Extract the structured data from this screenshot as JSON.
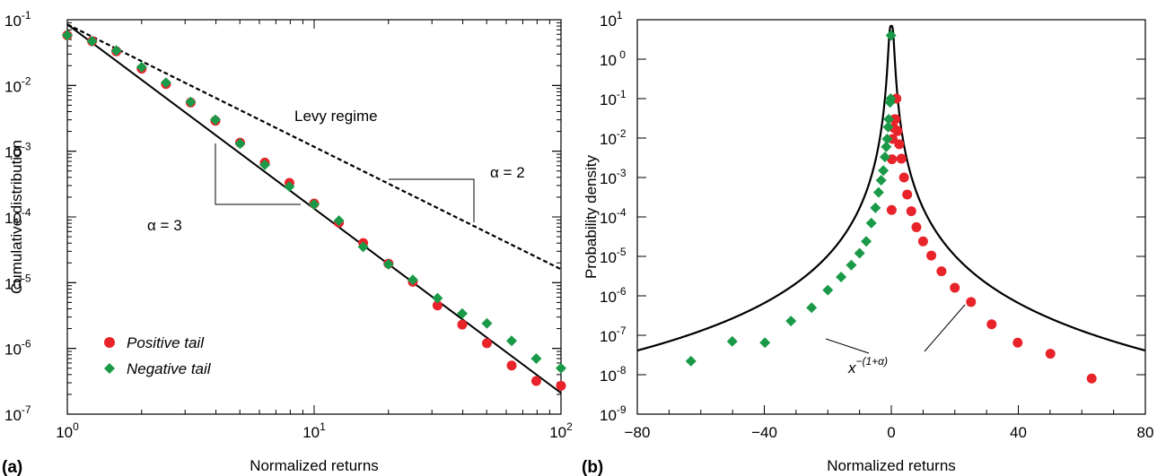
{
  "chart_data": [
    {
      "panel": "(a)",
      "type": "scatter",
      "xscale": "log",
      "yscale": "log",
      "xlabel": "Normalized returns",
      "ylabel": "Cumulative distribution",
      "xlim": [
        1,
        100
      ],
      "ylim": [
        1e-07,
        0.1
      ],
      "x_ticks": [
        {
          "base": "10",
          "exp": "0"
        },
        {
          "base": "10",
          "exp": "1"
        },
        {
          "base": "10",
          "exp": "2"
        }
      ],
      "y_ticks": [
        {
          "base": "10",
          "exp": "-1"
        },
        {
          "base": "10",
          "exp": "-2"
        },
        {
          "base": "10",
          "exp": "-3"
        },
        {
          "base": "10",
          "exp": "-4"
        },
        {
          "base": "10",
          "exp": "-5"
        },
        {
          "base": "10",
          "exp": "-6"
        },
        {
          "base": "10",
          "exp": "-7"
        }
      ],
      "legend": {
        "placement": "lower-left"
      },
      "series": [
        {
          "name": "Positive tail",
          "marker": "circle",
          "color": "#e8232a",
          "x": [
            1,
            1.26,
            1.58,
            2,
            2.51,
            3.16,
            3.98,
            5.01,
            6.31,
            7.94,
            10,
            12.6,
            15.8,
            20,
            25.1,
            31.6,
            39.8,
            50.1,
            63.1,
            79.4,
            100
          ],
          "y": [
            0.058,
            0.047,
            0.033,
            0.018,
            0.0105,
            0.0055,
            0.0029,
            0.00135,
            0.00067,
            0.00033,
            0.00016,
            8.2e-05,
            4e-05,
            1.95e-05,
            1.03e-05,
            4.5e-06,
            2.3e-06,
            1.2e-06,
            5.5e-07,
            3.2e-07,
            2.7e-07
          ]
        },
        {
          "name": "Negative tail",
          "marker": "diamond",
          "color": "#1a9a48",
          "x": [
            1,
            1.26,
            1.58,
            2,
            2.51,
            3.16,
            3.98,
            5.01,
            6.31,
            7.94,
            10,
            12.6,
            15.8,
            20,
            25.1,
            31.6,
            39.8,
            50.1,
            63.1,
            79.4,
            100
          ],
          "y": [
            0.058,
            0.047,
            0.034,
            0.019,
            0.011,
            0.0056,
            0.003,
            0.0013,
            0.00062,
            0.00029,
            0.000155,
            8.8e-05,
            3.5e-05,
            1.9e-05,
            1.1e-05,
            5.8e-06,
            3.4e-06,
            2.4e-06,
            1.3e-06,
            7e-07,
            5e-07
          ]
        }
      ],
      "lines": [
        {
          "style": "solid",
          "x": [
            1,
            100
          ],
          "y": [
            0.085,
            2.1e-07
          ]
        },
        {
          "style": "dashed",
          "x": [
            1,
            100
          ],
          "y": [
            0.085,
            1.6e-05
          ]
        }
      ],
      "annotations": {
        "levy": "Levy regime",
        "alpha_solid": "α = 3",
        "alpha_dashed": "α = 2"
      }
    },
    {
      "panel": "(b)",
      "type": "scatter",
      "xscale": "linear",
      "yscale": "log",
      "xlabel": "Normalized returns",
      "ylabel": "Probability density",
      "xlim": [
        -80,
        80
      ],
      "ylim": [
        1e-09,
        10
      ],
      "x_ticks": [
        "−80",
        "−40",
        "0",
        "40",
        "80"
      ],
      "y_ticks": [
        {
          "base": "10",
          "exp": "1"
        },
        {
          "base": "10",
          "exp": " 0"
        },
        {
          "base": "10",
          "exp": "-1"
        },
        {
          "base": "10",
          "exp": "-2"
        },
        {
          "base": "10",
          "exp": "-3"
        },
        {
          "base": "10",
          "exp": "-4"
        },
        {
          "base": "10",
          "exp": "-5"
        },
        {
          "base": "10",
          "exp": "-6"
        },
        {
          "base": "10",
          "exp": "-7"
        },
        {
          "base": "10",
          "exp": "-8"
        },
        {
          "base": "10",
          "exp": "-9"
        }
      ],
      "series": [
        {
          "name": "Positive tail",
          "marker": "circle",
          "color": "#e8232a",
          "x": [
            0.1,
            0.2,
            0.4,
            0.8,
            1.0,
            1.3,
            1.6,
            2.0,
            2.5,
            3.2,
            4.0,
            5.0,
            6.3,
            7.9,
            10,
            12.6,
            15.8,
            20,
            25.1,
            31.6,
            39.8,
            50.1,
            63.1
          ],
          "y": [
            0.00015,
            0.0029,
            0.0095,
            0.018,
            0.03,
            0.03,
            0.1,
            0.015,
            0.007,
            0.003,
            0.001,
            0.00037,
            0.00014,
            5.5e-05,
            2.4e-05,
            1.05e-05,
            4.2e-06,
            1.6e-06,
            7e-07,
            1.9e-07,
            6.5e-08,
            3.4e-08,
            8e-09
          ]
        },
        {
          "name": "Negative tail",
          "marker": "diamond",
          "color": "#1a9a48",
          "x": [
            -0.1,
            -0.2,
            -0.4,
            -0.8,
            -1.0,
            -1.3,
            -1.6,
            -2.0,
            -2.5,
            -3.2,
            -4.0,
            -5.0,
            -6.3,
            -7.9,
            -10,
            -12.6,
            -15.8,
            -20,
            -25.1,
            -31.6,
            -39.8,
            -50.1,
            -63.1
          ],
          "y": [
            4,
            0.1,
            0.08,
            0.03,
            0.019,
            0.0095,
            0.006,
            0.0033,
            0.0015,
            0.00085,
            0.00042,
            0.00017,
            7e-05,
            2.4e-05,
            1.2e-05,
            6e-06,
            3e-06,
            1.4e-06,
            5e-07,
            2.3e-07,
            6.5e-08,
            7e-08,
            2.2e-08
          ]
        }
      ],
      "curve": {
        "peak": 7,
        "width": 0.7,
        "tail_exponent": 4
      },
      "annotations": {
        "power": "x",
        "power_sup": "−(1+α)"
      }
    }
  ]
}
